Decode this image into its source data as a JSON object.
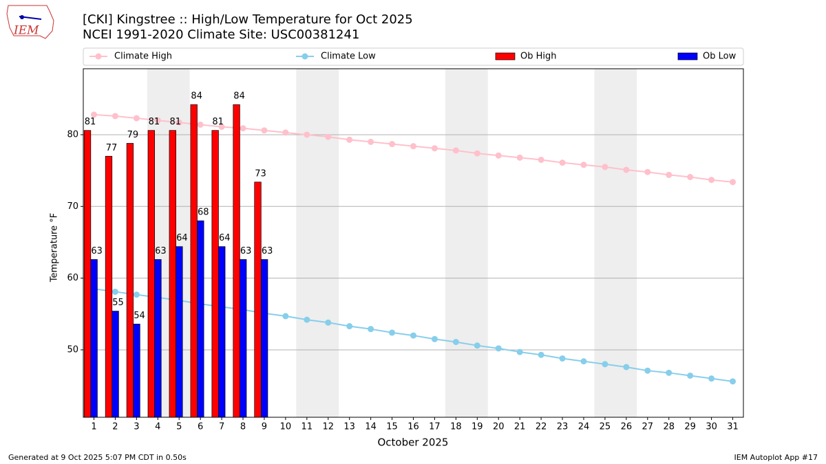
{
  "logo_text": "IEM",
  "footer_left": "Generated at 9 Oct 2025 5:07 PM CDT in 0.50s",
  "footer_right": "IEM Autoplot App #17",
  "chart_data": {
    "type": "bar",
    "title": "[CKI] Kingstree :: High/Low Temperature for Oct 2025",
    "subtitle": "NCEI 1991-2020 Climate Site: USC00381241",
    "y_label": "Temperature °F",
    "x_label": "October 2025",
    "categories": [
      "1",
      "2",
      "3",
      "4",
      "5",
      "6",
      "7",
      "8",
      "9",
      "10",
      "11",
      "12",
      "13",
      "14",
      "15",
      "16",
      "17",
      "18",
      "19",
      "20",
      "21",
      "22",
      "23",
      "24",
      "25",
      "26",
      "27",
      "28",
      "29",
      "30",
      "31"
    ],
    "shaded_spans": [
      [
        "4",
        "5"
      ],
      [
        "11",
        "12"
      ],
      [
        "18",
        "19"
      ],
      [
        "25",
        "26"
      ]
    ],
    "ylim": [
      40.6,
      89.2
    ],
    "yticks": [
      50,
      60,
      70,
      80
    ],
    "grid": true,
    "legend": "top",
    "series": [
      {
        "name": "Climate High",
        "type": "line",
        "color": "#ffc0cb",
        "values": [
          82.8,
          82.6,
          82.3,
          82.0,
          81.7,
          81.4,
          81.1,
          80.9,
          80.6,
          80.3,
          80.0,
          79.7,
          79.3,
          79.0,
          78.7,
          78.4,
          78.1,
          77.8,
          77.4,
          77.1,
          76.8,
          76.5,
          76.1,
          75.8,
          75.5,
          75.1,
          74.8,
          74.4,
          74.1,
          73.7,
          73.4
        ]
      },
      {
        "name": "Climate Low",
        "type": "line",
        "color": "#87ceeb",
        "values": [
          58.5,
          58.1,
          57.7,
          57.3,
          56.9,
          56.4,
          56.0,
          55.6,
          55.1,
          54.7,
          54.2,
          53.8,
          53.3,
          52.9,
          52.4,
          52.0,
          51.5,
          51.1,
          50.6,
          50.2,
          49.7,
          49.3,
          48.8,
          48.4,
          48.0,
          47.6,
          47.1,
          46.8,
          46.4,
          46.0,
          45.6
        ]
      },
      {
        "name": "Ob High",
        "type": "bar",
        "color": "#ff0000",
        "values": [
          80.6,
          77.0,
          78.8,
          80.6,
          80.6,
          84.2,
          80.6,
          84.2,
          73.4,
          null,
          null,
          null,
          null,
          null,
          null,
          null,
          null,
          null,
          null,
          null,
          null,
          null,
          null,
          null,
          null,
          null,
          null,
          null,
          null,
          null,
          null
        ],
        "value_labels": [
          "81",
          "77",
          "79",
          "81",
          "81",
          "84",
          "81",
          "84",
          "73",
          null,
          null,
          null,
          null,
          null,
          null,
          null,
          null,
          null,
          null,
          null,
          null,
          null,
          null,
          null,
          null,
          null,
          null,
          null,
          null,
          null,
          null
        ]
      },
      {
        "name": "Ob Low",
        "type": "bar",
        "color": "#0000ff",
        "values": [
          62.6,
          55.4,
          53.6,
          62.6,
          64.4,
          68.0,
          64.4,
          62.6,
          62.6,
          null,
          null,
          null,
          null,
          null,
          null,
          null,
          null,
          null,
          null,
          null,
          null,
          null,
          null,
          null,
          null,
          null,
          null,
          null,
          null,
          null,
          null
        ],
        "value_labels": [
          "63",
          "55",
          "54",
          "63",
          "64",
          "68",
          "64",
          "63",
          "63",
          null,
          null,
          null,
          null,
          null,
          null,
          null,
          null,
          null,
          null,
          null,
          null,
          null,
          null,
          null,
          null,
          null,
          null,
          null,
          null,
          null,
          null
        ]
      }
    ]
  }
}
